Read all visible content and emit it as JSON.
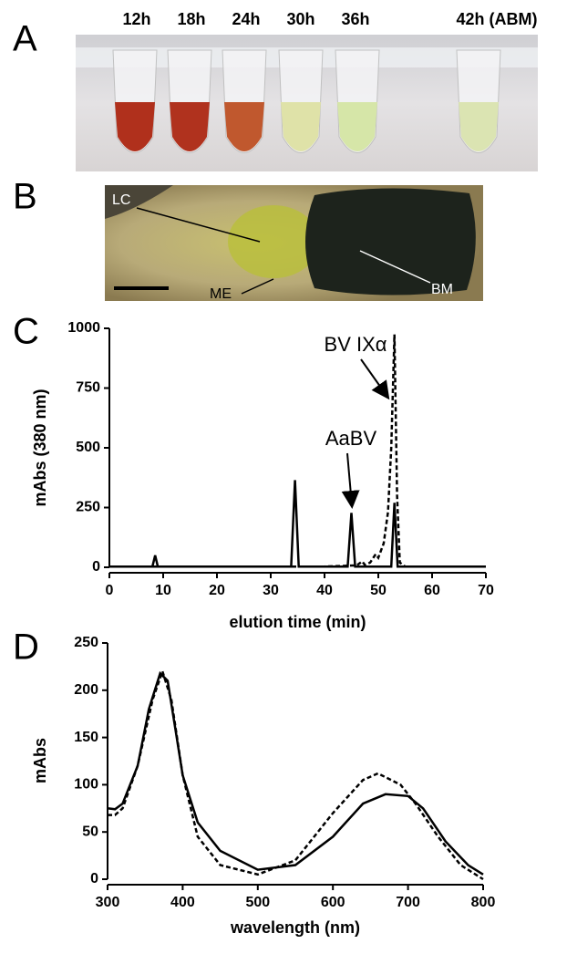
{
  "panel_a": {
    "letter": "A",
    "labels": [
      "12h",
      "18h",
      "24h",
      "30h",
      "36h",
      "42h (ABM)"
    ]
  },
  "panel_b": {
    "letter": "B",
    "labels": [
      "LC",
      "ME",
      "BM"
    ]
  },
  "chart_data": [
    {
      "type": "line",
      "letter": "C",
      "ylabel": "mAbs (380 nm)",
      "xlabel": "elution time (min)",
      "annotations": [
        "BV IXα",
        "AaBV"
      ],
      "xlim": [
        0,
        70
      ],
      "xticks": [
        0,
        10,
        20,
        30,
        40,
        50,
        60,
        70
      ],
      "ylim": [
        0,
        1000
      ],
      "yticks": [
        0,
        250,
        500,
        750,
        1000
      ],
      "series": [
        {
          "color": "#000000",
          "dashed": false,
          "x": [
            0,
            8,
            8.5,
            9,
            33.8,
            34.5,
            35.2,
            44.3,
            45,
            45.7,
            52.4,
            53,
            53.6,
            70
          ],
          "values": [
            3,
            3,
            50,
            3,
            3,
            365,
            3,
            3,
            228,
            3,
            3,
            270,
            3,
            3
          ]
        },
        {
          "color": "#000000",
          "dashed": true,
          "x": [
            0,
            40,
            46,
            47,
            47.5,
            48.5,
            49.5,
            50,
            51,
            51.8,
            52.4,
            53,
            53.5,
            54,
            55,
            70
          ],
          "values": [
            3,
            3,
            8,
            25,
            10,
            20,
            55,
            40,
            100,
            230,
            500,
            975,
            300,
            20,
            3,
            3
          ]
        }
      ]
    },
    {
      "type": "line",
      "letter": "D",
      "ylabel": "mAbs",
      "xlabel": "wavelength (nm)",
      "xlim": [
        300,
        800
      ],
      "xticks": [
        300,
        400,
        500,
        600,
        700,
        800
      ],
      "ylim": [
        0,
        250
      ],
      "yticks": [
        0,
        50,
        100,
        150,
        200,
        250
      ],
      "series": [
        {
          "color": "#000000",
          "dashed": false,
          "x": [
            300,
            310,
            320,
            340,
            355,
            370,
            380,
            390,
            400,
            420,
            450,
            500,
            550,
            600,
            640,
            670,
            700,
            720,
            750,
            780,
            800
          ],
          "values": [
            75,
            74,
            80,
            120,
            180,
            218,
            210,
            160,
            110,
            60,
            30,
            10,
            15,
            45,
            80,
            90,
            88,
            75,
            40,
            15,
            5
          ]
        },
        {
          "color": "#000000",
          "dashed": true,
          "x": [
            300,
            310,
            320,
            340,
            360,
            373,
            385,
            400,
            420,
            450,
            500,
            550,
            600,
            640,
            660,
            690,
            710,
            740,
            770,
            800
          ],
          "values": [
            68,
            68,
            75,
            120,
            190,
            220,
            190,
            110,
            45,
            15,
            5,
            20,
            70,
            105,
            112,
            100,
            80,
            45,
            15,
            0
          ]
        }
      ]
    }
  ]
}
